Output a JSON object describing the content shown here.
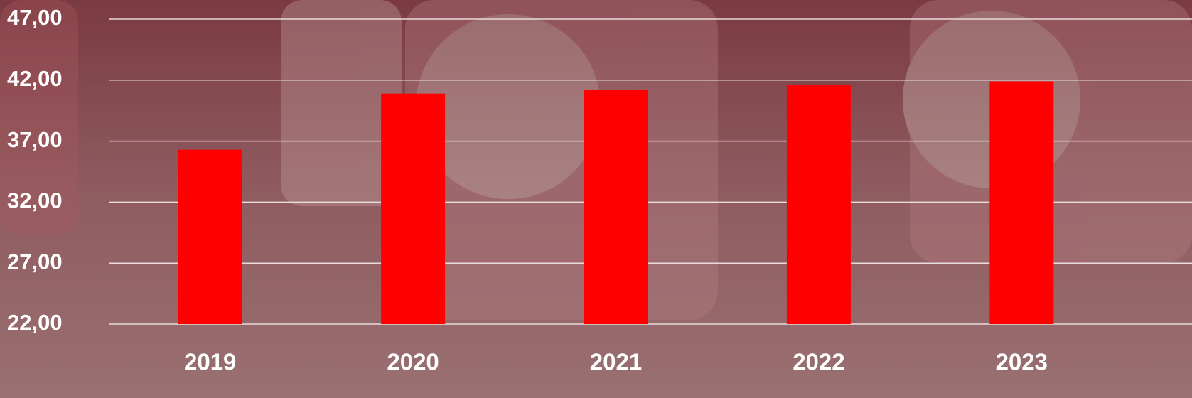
{
  "chart_data": {
    "type": "bar",
    "categories": [
      "2019",
      "2020",
      "2021",
      "2022",
      "2023"
    ],
    "values": [
      36.3,
      40.9,
      41.2,
      41.6,
      41.9
    ],
    "color": "#ff0000",
    "ylim": [
      22,
      47
    ],
    "yticks": [
      {
        "value": 22,
        "label": "22,00"
      },
      {
        "value": 27,
        "label": "27,00"
      },
      {
        "value": 32,
        "label": "32,00"
      },
      {
        "value": 37,
        "label": "37,00"
      },
      {
        "value": 42,
        "label": "42,00"
      },
      {
        "value": 47,
        "label": "47,00"
      }
    ],
    "grid": true
  }
}
